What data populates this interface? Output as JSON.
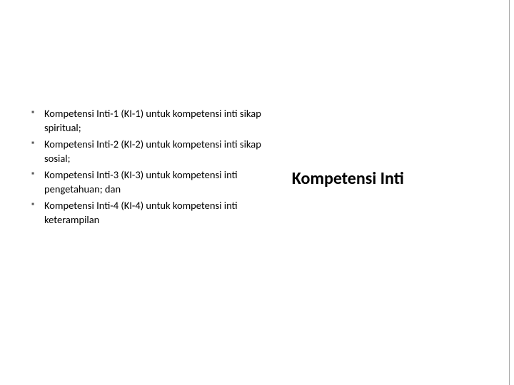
{
  "slide": {
    "heading": "Kompetensi Inti",
    "heading_fontsize": 24,
    "heading_fontweight": 700,
    "heading_color": "#000000",
    "bullets": [
      "Kompetensi Inti-1 (KI-1) untuk kompetensi inti sikap spiritual;",
      "Kompetensi Inti-2 (KI-2) untuk kompetensi inti sikap sosial;",
      "Kompetensi Inti-3 (KI-3) untuk kompetensi inti pengetahuan; dan",
      "Kompetensi Inti-4 (KI-4) untuk kompetensi inti keterampilan"
    ],
    "bullet_fontsize": 14.5,
    "bullet_color": "#000000",
    "bullet_marker_color": "#5a5a5a",
    "background_color": "#ffffff",
    "edge_line_color": "#aaaaaa"
  }
}
